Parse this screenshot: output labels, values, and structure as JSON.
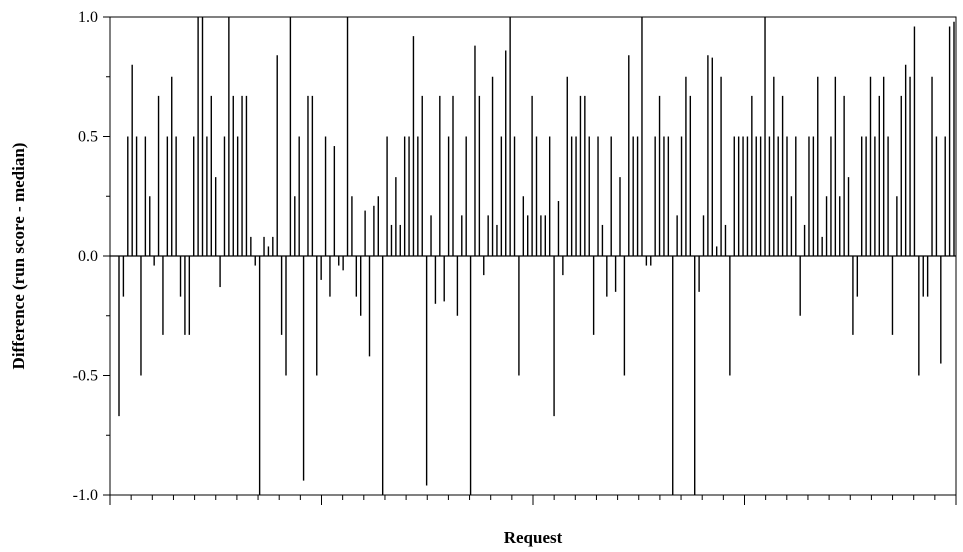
{
  "chart_data": {
    "type": "bar",
    "title": "",
    "xlabel": "Request",
    "ylabel": "Difference (run score - median)",
    "ylim": [
      -1.0,
      1.0
    ],
    "yticks": [
      "1.0",
      "0.5",
      "0.0",
      "-0.5",
      "-1.0"
    ],
    "ytick_values": [
      1.0,
      0.5,
      0.0,
      -0.5,
      -1.0
    ],
    "grid": false,
    "bar_color": "#000000",
    "series": [
      {
        "values": [
          -0.67,
          -0.17,
          0.5,
          0.8,
          0.5,
          -0.5,
          0.5,
          0.25,
          -0.04,
          0.67,
          -0.33,
          0.5,
          0.75,
          0.5,
          -0.17,
          -0.33,
          -0.33,
          0.5,
          1.0,
          1.0,
          0.5,
          0.67,
          0.33,
          -0.13,
          0.5,
          1.0,
          0.67,
          0.5,
          0.67,
          0.67,
          0.08,
          -0.04,
          -1.0,
          0.08,
          0.04,
          0.08,
          0.84,
          -0.33,
          -0.5,
          1.0,
          0.25,
          0.5,
          -0.94,
          0.67,
          0.67,
          -0.5,
          -0.1,
          0.5,
          -0.17,
          0.46,
          -0.04,
          -0.06,
          1.0,
          0.25,
          -0.17,
          -0.25,
          0.19,
          -0.42,
          0.21,
          0.25,
          -1.0,
          0.5,
          0.13,
          0.33,
          0.13,
          0.5,
          0.5,
          0.92,
          0.5,
          0.67,
          -0.96,
          0.17,
          -0.2,
          0.67,
          -0.19,
          0.5,
          0.67,
          -0.25,
          0.17,
          0.5,
          -1.0,
          0.88,
          0.67,
          -0.08,
          0.17,
          0.75,
          0.13,
          0.5,
          0.86,
          1.0,
          0.5,
          -0.5,
          0.25,
          0.17,
          0.67,
          0.5,
          0.17,
          0.17,
          0.5,
          -0.67,
          0.23,
          -0.08,
          0.75,
          0.5,
          0.5,
          0.67,
          0.67,
          0.5,
          -0.33,
          0.5,
          0.13,
          -0.17,
          0.5,
          -0.15,
          0.33,
          -0.5,
          0.84,
          0.5,
          0.5,
          1.0,
          -0.04,
          -0.04,
          0.5,
          0.67,
          0.5,
          0.5,
          -1.0,
          0.17,
          0.5,
          0.75,
          0.67,
          -1.0,
          -0.15,
          0.17,
          0.84,
          0.83,
          0.04,
          0.75,
          0.13,
          -0.5,
          0.5,
          0.5,
          0.5,
          0.5,
          0.67,
          0.5,
          0.5,
          1.0,
          0.5,
          0.75,
          0.5,
          0.67,
          0.5,
          0.25,
          0.5,
          -0.25,
          0.13,
          0.5,
          0.5,
          0.75,
          0.08,
          0.25,
          0.5,
          0.75,
          0.25,
          0.67,
          0.33,
          -0.33,
          -0.17,
          0.5,
          0.5,
          0.75,
          0.5,
          0.67,
          0.75,
          0.5,
          -0.33,
          0.25,
          0.67,
          0.8,
          0.75,
          0.96,
          -0.5,
          -0.17,
          -0.17,
          0.75,
          0.5,
          -0.45,
          0.5,
          0.96,
          0.98
        ]
      }
    ]
  }
}
